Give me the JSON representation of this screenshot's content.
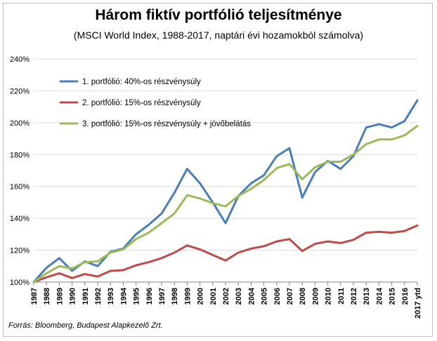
{
  "chart_data": {
    "type": "line",
    "title": "Három fiktív portfólió teljesítménye",
    "subtitle": "(MSCI World Index, 1988-2017, naptári évi hozamokból  számolva)",
    "source": "Forrás: Bloomberg, Budapest Alapkezelő Zrt.",
    "xlabel": "",
    "ylabel": "",
    "categories": [
      "1987",
      "1988",
      "1989",
      "1990",
      "1991",
      "1992",
      "1993",
      "1994",
      "1995",
      "1996",
      "1997",
      "1998",
      "1999",
      "2000",
      "2001",
      "2002",
      "2003",
      "2004",
      "2005",
      "2006",
      "2007",
      "2008",
      "2009",
      "2010",
      "2011",
      "2012",
      "2013",
      "2014",
      "2015",
      "2016",
      "2017 ytd"
    ],
    "ylim": [
      100,
      240
    ],
    "yticks": [
      100,
      120,
      140,
      160,
      180,
      200,
      220,
      240
    ],
    "ytick_labels": [
      "100%",
      "120%",
      "140%",
      "160%",
      "180%",
      "200%",
      "220%",
      "240%"
    ],
    "grid": true,
    "legend_position": "top-left",
    "series": [
      {
        "name": "1. portfólió: 40%-os részvénysúly",
        "color": "#4a7ebb",
        "values": [
          100,
          109,
          115,
          107,
          113,
          110,
          119,
          121,
          130,
          136,
          143,
          156,
          171,
          162,
          150,
          137,
          154,
          162,
          167,
          179,
          184,
          153,
          169,
          176,
          171,
          179,
          197,
          199,
          197,
          201,
          214
        ]
      },
      {
        "name": "2. portfólió: 15%-os részvénysúly",
        "color": "#be4b48",
        "values": [
          100,
          103,
          105.5,
          102.5,
          105,
          103.5,
          107,
          107.5,
          110.5,
          112.5,
          115,
          118.5,
          123,
          120.5,
          117,
          113.5,
          118.5,
          121,
          122.5,
          125.5,
          127,
          119.5,
          124,
          125.5,
          124.5,
          126.5,
          131,
          131.5,
          131,
          132,
          135.5
        ]
      },
      {
        "name": "3. portfólió: 15%-os részvénysúly + jövőbelátás",
        "color": "#9bbb59",
        "values": [
          100,
          105.5,
          110,
          108.5,
          112.5,
          113,
          118.5,
          120.5,
          127,
          131,
          137,
          143,
          154.5,
          152.5,
          149.5,
          147.5,
          154,
          158.5,
          164,
          171.5,
          174,
          164.5,
          172,
          175.5,
          175.5,
          180,
          186.5,
          189.5,
          189.5,
          192,
          198
        ]
      }
    ]
  }
}
